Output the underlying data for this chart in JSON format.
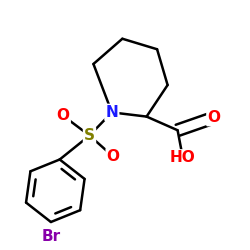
{
  "bg_color": "#ffffff",
  "atom_colors": {
    "N": "#1a1aff",
    "O": "#ff0000",
    "S": "#808000",
    "Br": "#8800aa"
  },
  "bond_color": "#000000",
  "bond_width": 1.8,
  "font_size": 11
}
